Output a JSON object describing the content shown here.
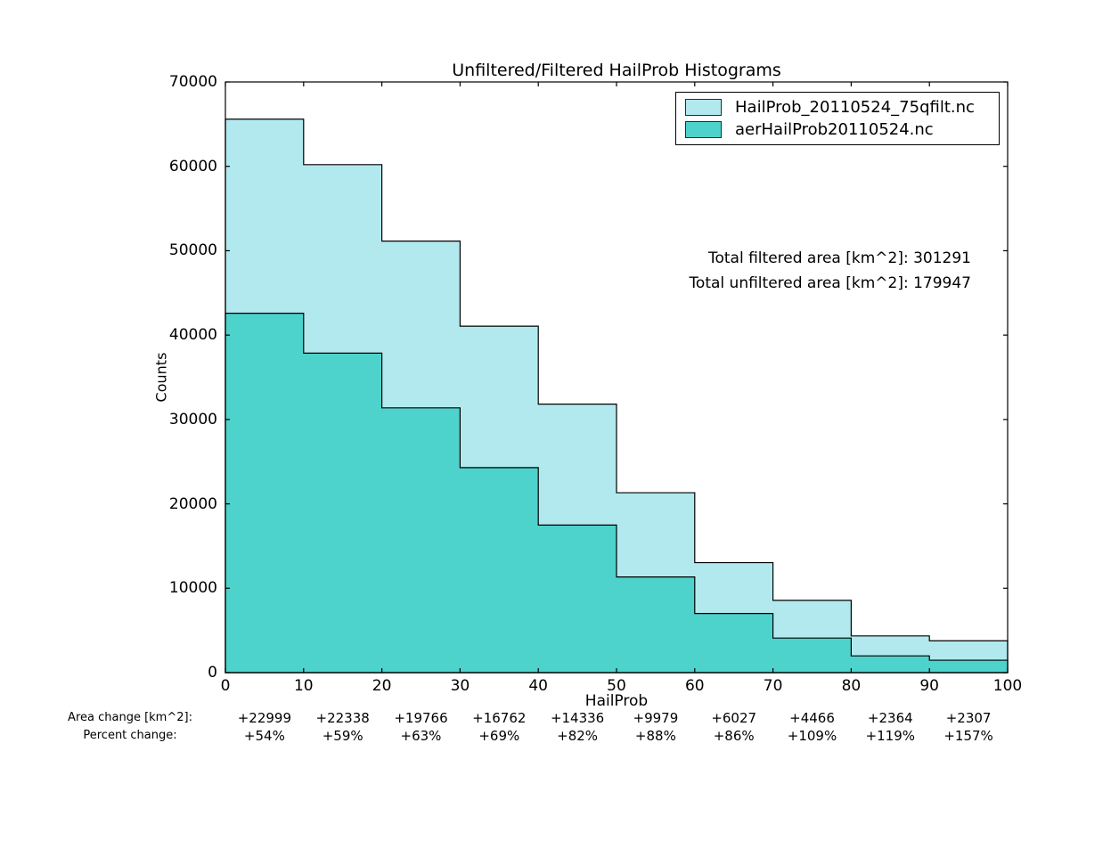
{
  "title": "Unfiltered/Filtered HailProb Histograms",
  "chart_data": {
    "type": "step-histogram",
    "title": "Unfiltered/Filtered HailProb Histograms",
    "xlabel": "HailProb",
    "ylabel": "Counts",
    "xlim": [
      0,
      100
    ],
    "ylim": [
      0,
      70000
    ],
    "xticks": [
      0,
      10,
      20,
      30,
      40,
      50,
      60,
      70,
      80,
      90,
      100
    ],
    "yticks": [
      0,
      10000,
      20000,
      30000,
      40000,
      50000,
      60000,
      70000
    ],
    "bin_edges": [
      0,
      10,
      20,
      30,
      40,
      50,
      60,
      70,
      80,
      90,
      100
    ],
    "series": [
      {
        "name": "HailProb_20110524_75qfilt.nc",
        "color": "#b2e9ee",
        "values": [
          65590,
          60199,
          51141,
          41055,
          31819,
          21319,
          13035,
          8563,
          4351,
          3776
        ]
      },
      {
        "name": "aerHailProb20110524.nc",
        "color": "#4dd2cc",
        "values": [
          42591,
          37861,
          31375,
          24293,
          17483,
          11340,
          7008,
          4097,
          1987,
          1469
        ]
      }
    ],
    "legend_position": "upper right",
    "edge_color": "#000000",
    "annotations": [
      "Total filtered area [km^2]: 301291",
      "Total unfiltered area [km^2]: 179947"
    ]
  },
  "footer": {
    "row1_label": "Area change [km^2]:",
    "row2_label": "Percent change:",
    "area_change": [
      "+22999",
      "+22338",
      "+19766",
      "+16762",
      "+14336",
      "+9979",
      "+6027",
      "+4466",
      "+2364",
      "+2307"
    ],
    "percent_change": [
      "+54%",
      "+59%",
      "+63%",
      "+69%",
      "+82%",
      "+88%",
      "+86%",
      "+109%",
      "+119%",
      "+157%"
    ]
  }
}
